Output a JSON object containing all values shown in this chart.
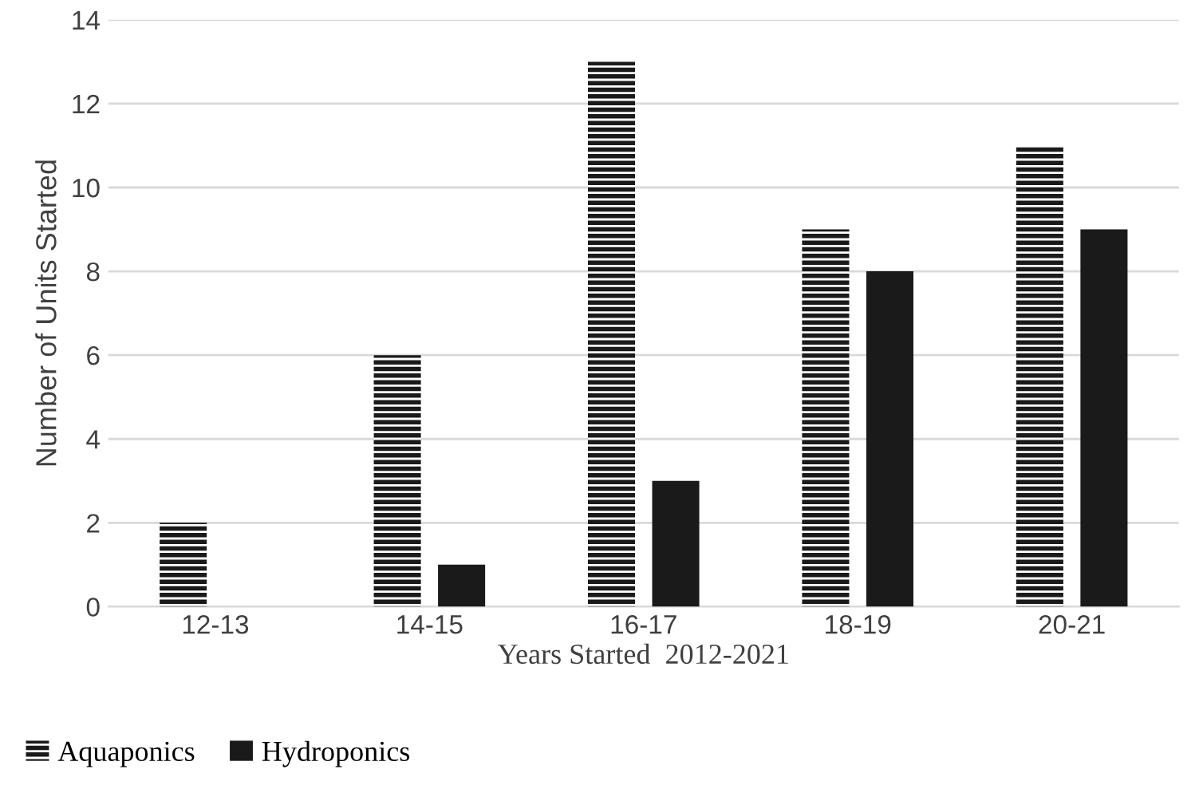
{
  "chart_data": {
    "type": "bar",
    "categories": [
      "12-13",
      "14-15",
      "16-17",
      "18-19",
      "20-21"
    ],
    "series": [
      {
        "name": "Aquaponics",
        "color": "#1a1a1a",
        "values": [
          2,
          6,
          13,
          9,
          11
        ]
      },
      {
        "name": "Hydroponics",
        "color": "#1a1a1a",
        "values": [
          0,
          1,
          3,
          8,
          9
        ]
      }
    ],
    "xlabel": "Years Started  2012-2021",
    "ylabel": "Number of Units Started",
    "ylim": [
      0,
      14
    ],
    "yticks": [
      0,
      2,
      4,
      6,
      8,
      10,
      12,
      14
    ],
    "grid": "y",
    "legend": "bottom left"
  }
}
